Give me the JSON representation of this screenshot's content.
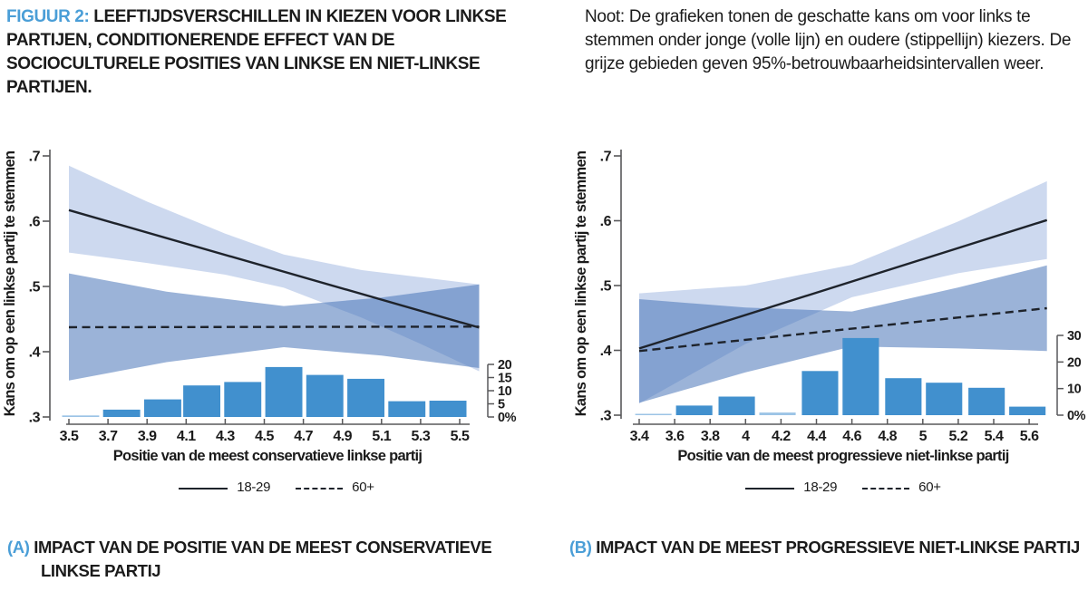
{
  "header": {
    "figure_label": "FIGUUR 2:",
    "title_rest": " LEEFTIJDSVERSCHILLEN IN KIEZEN VOOR LINKSE PARTIJEN, CONDITIONERENDE EFFECT VAN DE SOCIOCULTURELE POSITIES VAN LINKSE EN NIET-LINKSE PARTIJEN.",
    "note": "Noot: De grafieken tonen de geschatte kans om voor links te stemmen onder jonge (volle lijn) en oudere (stippellijn) kiezers. De grijze gebieden geven 95%-betrouwbaarheidsintervallen weer."
  },
  "legend": {
    "young_label": "18-29",
    "old_label": "60+"
  },
  "captions": {
    "a_label": "(A)",
    "a_text": "IMPACT VAN DE POSITIE VAN DE MEEST CONSERVATIEVE LINKSE PARTIJ",
    "b_label": "(B)",
    "b_text": "IMPACT VAN DE MEEST PROGRESSIEVE NIET-LINKSE PARTIJ"
  },
  "colors": {
    "accent_blue": "#4A9ED7",
    "text_dark": "#1B1B1B",
    "data_line": "#1E232B",
    "band_young": "#CDD9EF",
    "band_old": "rgba(72,116,184,0.55)",
    "bar_fill": "#4190CE",
    "bar_small_fill": "#9CC4E6",
    "axis_gray": "#58585A"
  },
  "chart_data": [
    {
      "id": "A",
      "type": "line",
      "panel_title": "(A) IMPACT VAN DE POSITIE VAN DE MEEST CONSERVATIEVE LINKSE PARTIJ",
      "xlabel": "Positie van de meest conservatieve linkse partij",
      "ylabel": "Kans om op een linkse partij te stemmen",
      "xlim": [
        3.4,
        5.66
      ],
      "ylim": [
        0.3,
        0.7
      ],
      "x_tick_values": [
        3.5,
        3.7,
        3.9,
        4.1,
        4.3,
        4.5,
        4.7,
        4.9,
        5.1,
        5.3,
        5.5
      ],
      "x_tick_labels": [
        "3.5",
        "3.7",
        "3.9",
        "4.1",
        "4.3",
        "4.5",
        "4.7",
        "4.9",
        "5.1",
        "5.3",
        "5.5"
      ],
      "y_tick_values": [
        0.3,
        0.4,
        0.5,
        0.6,
        0.7
      ],
      "y_tick_labels": [
        ".3",
        ".4",
        ".5",
        ".6",
        ".7"
      ],
      "series": [
        {
          "name": "18-29",
          "style": "solid",
          "x": [
            3.5,
            5.6
          ],
          "y": [
            0.617,
            0.437
          ],
          "ci_x": [
            3.5,
            3.9,
            4.3,
            4.6,
            5.0,
            5.3,
            5.6
          ],
          "ci_upper": [
            0.685,
            0.63,
            0.581,
            0.549,
            0.525,
            0.514,
            0.503
          ],
          "ci_lower": [
            0.552,
            0.536,
            0.518,
            0.498,
            0.452,
            0.412,
            0.37
          ]
        },
        {
          "name": "60+",
          "style": "dashed",
          "x": [
            3.5,
            5.6
          ],
          "y": [
            0.4375,
            0.4385
          ],
          "ci_x": [
            3.5,
            4.0,
            4.6,
            5.1,
            5.6
          ],
          "ci_upper": [
            0.52,
            0.492,
            0.47,
            0.483,
            0.503
          ],
          "ci_lower": [
            0.356,
            0.384,
            0.407,
            0.394,
            0.375
          ]
        }
      ],
      "histogram": {
        "sec_axis_values": [
          0,
          5,
          10,
          15,
          20
        ],
        "sec_axis_labels": [
          "0%",
          "5",
          "10",
          "15",
          "20"
        ],
        "bin_centers": [
          3.56,
          3.77,
          3.98,
          4.18,
          4.39,
          4.6,
          4.81,
          5.02,
          5.23,
          5.44
        ],
        "bin_width": 0.19,
        "percentages": [
          0.6,
          2.8,
          6.7,
          12,
          13.3,
          19,
          16,
          14.5,
          6,
          6.2
        ]
      }
    },
    {
      "id": "B",
      "type": "line",
      "panel_title": "(B) IMPACT VAN DE MEEST PROGRESSIEVE NIET-LINKSE PARTIJ",
      "xlabel": "Positie van de meest progressieve niet-linkse partij",
      "ylabel": "Kans om op een linkse partij te stemmen",
      "xlim": [
        3.3,
        5.76
      ],
      "ylim": [
        0.3,
        0.7
      ],
      "x_tick_values": [
        3.4,
        3.6,
        3.8,
        4,
        4.2,
        4.4,
        4.6,
        4.8,
        5,
        5.2,
        5.4,
        5.6
      ],
      "x_tick_labels": [
        "3.4",
        "3.6",
        "3.8",
        "4",
        "4.2",
        "4.4",
        "4.6",
        "4.8",
        "5",
        "5.2",
        "5.4",
        "5.6"
      ],
      "y_tick_values": [
        0.3,
        0.4,
        0.5,
        0.6,
        0.7
      ],
      "y_tick_labels": [
        ".3",
        ".4",
        ".5",
        ".6",
        ".7"
      ],
      "series": [
        {
          "name": "18-29",
          "style": "solid",
          "x": [
            3.4,
            5.7
          ],
          "y": [
            0.403,
            0.601
          ],
          "ci_x": [
            3.4,
            4.0,
            4.6,
            5.2,
            5.7
          ],
          "ci_upper": [
            0.488,
            0.5,
            0.532,
            0.599,
            0.661
          ],
          "ci_lower": [
            0.318,
            0.41,
            0.482,
            0.519,
            0.541
          ]
        },
        {
          "name": "60+",
          "style": "dashed",
          "x": [
            3.4,
            5.7
          ],
          "y": [
            0.399,
            0.465
          ],
          "ci_x": [
            3.4,
            4.0,
            4.6,
            5.2,
            5.7
          ],
          "ci_upper": [
            0.479,
            0.466,
            0.46,
            0.497,
            0.531
          ],
          "ci_lower": [
            0.319,
            0.366,
            0.406,
            0.403,
            0.399
          ]
        }
      ],
      "histogram": {
        "sec_axis_values": [
          0,
          10,
          20,
          30
        ],
        "sec_axis_labels": [
          "0%",
          "10",
          "20",
          "30"
        ],
        "bin_centers": [
          3.48,
          3.71,
          3.95,
          4.18,
          4.42,
          4.65,
          4.89,
          5.12,
          5.36,
          5.59
        ],
        "bin_width": 0.205,
        "percentages": [
          0.5,
          3.6,
          7,
          1,
          16.6,
          29,
          13.9,
          12.2,
          10.3,
          3.2
        ]
      }
    }
  ]
}
